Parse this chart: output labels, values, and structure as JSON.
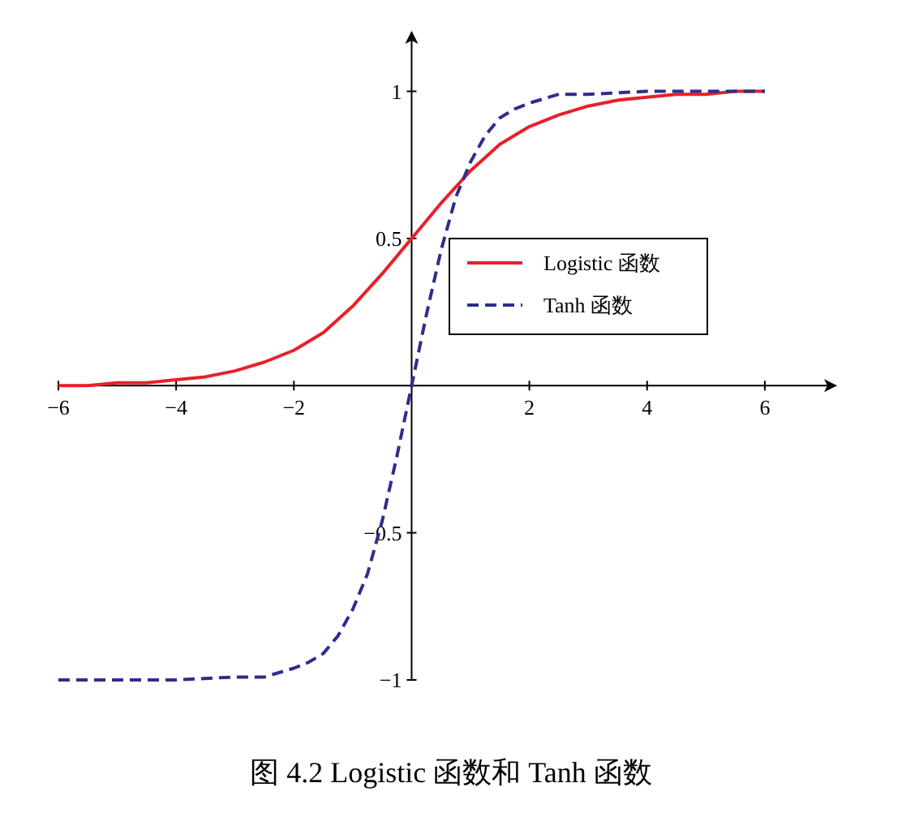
{
  "chart_data": {
    "type": "line",
    "x": [
      -6,
      -5.5,
      -5,
      -4.5,
      -4,
      -3.5,
      -3,
      -2.5,
      -2,
      -1.5,
      -1,
      -0.5,
      0,
      0.5,
      1,
      1.5,
      2,
      2.5,
      3,
      3.5,
      4,
      4.5,
      5,
      5.5,
      6
    ],
    "series": [
      {
        "name": "Logistic 函数",
        "color": "#e8202a",
        "line_style": "solid",
        "values": [
          0.0,
          0.0,
          0.01,
          0.01,
          0.02,
          0.03,
          0.05,
          0.08,
          0.12,
          0.18,
          0.27,
          0.38,
          0.5,
          0.62,
          0.73,
          0.82,
          0.88,
          0.92,
          0.95,
          0.97,
          0.98,
          0.99,
          0.99,
          1.0,
          1.0
        ]
      },
      {
        "name": "Tanh 函数",
        "color": "#2e2e8c",
        "line_style": "dashed",
        "x": [
          -6,
          -5,
          -4,
          -3,
          -2.5,
          -2,
          -1.75,
          -1.5,
          -1.25,
          -1,
          -0.75,
          -0.5,
          -0.25,
          0,
          0.25,
          0.5,
          0.75,
          1,
          1.25,
          1.5,
          1.75,
          2,
          2.5,
          3,
          4,
          5,
          6
        ],
        "values": [
          -1.0,
          -1.0,
          -1.0,
          -0.99,
          -0.99,
          -0.96,
          -0.94,
          -0.91,
          -0.85,
          -0.76,
          -0.64,
          -0.46,
          -0.24,
          0.0,
          0.24,
          0.46,
          0.64,
          0.76,
          0.85,
          0.91,
          0.94,
          0.96,
          0.99,
          0.99,
          1.0,
          1.0,
          1.0
        ]
      }
    ],
    "xlim": [
      -6,
      7.2
    ],
    "ylim": [
      -1,
      1.2
    ],
    "xticks": [
      -6,
      -4,
      -2,
      2,
      4,
      6
    ],
    "yticks": [
      -1,
      -0.5,
      0.5,
      1
    ],
    "grid": false,
    "legend": "right",
    "marker": "none",
    "annotations": [
      "图 4.2 Logistic 函数和 Tanh 函数"
    ]
  }
}
